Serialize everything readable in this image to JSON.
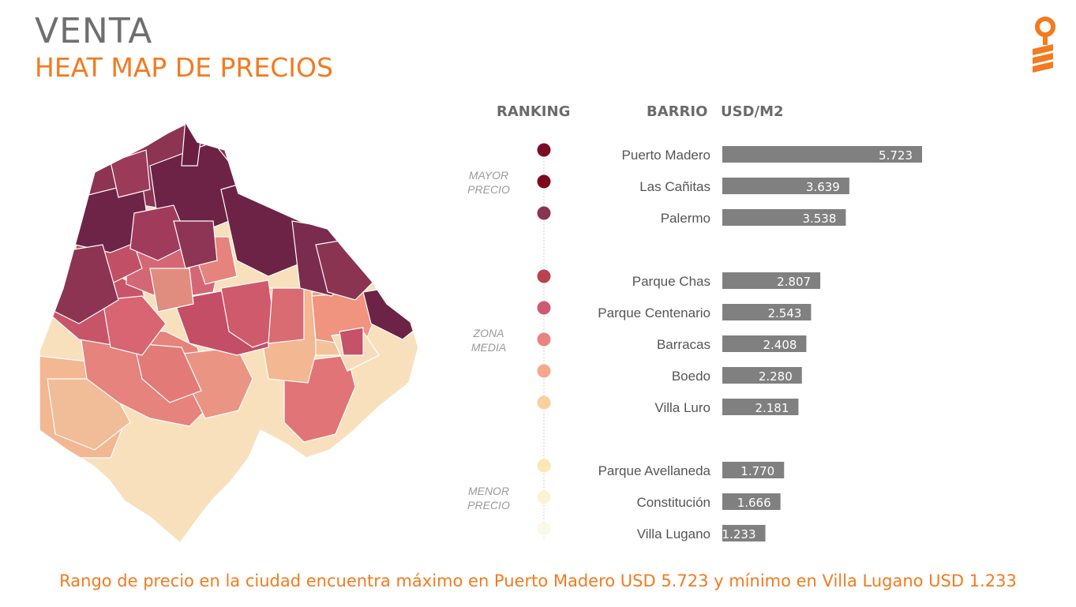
{
  "header": {
    "title": "VENTA",
    "subtitle": "HEAT MAP DE PRECIOS"
  },
  "logo": {
    "icon": "key-icon",
    "color": "#f47a1f"
  },
  "colors": {
    "accent": "#f47a1f",
    "bar": "#808080",
    "title_gray": "#6f6f6f"
  },
  "chart_data": {
    "type": "bar",
    "orientation": "horizontal",
    "columns": {
      "ranking": "RANKING",
      "barrio": "BARRIO",
      "value": "USD/M2"
    },
    "groups": [
      {
        "label": "MAYOR PRECIO",
        "start": 0,
        "end": 2
      },
      {
        "label": "ZONA MEDIA",
        "start": 3,
        "end": 7
      },
      {
        "label": "MENOR PRECIO",
        "start": 8,
        "end": 10
      }
    ],
    "categories": [
      "Puerto Madero",
      "Las Cañitas",
      "Palermo",
      "Parque Chas",
      "Parque Centenario",
      "Barracas",
      "Boedo",
      "Villa Luro",
      "Parque Avellaneda",
      "Constitución",
      "Villa Lugano"
    ],
    "values": [
      5723,
      3639,
      3538,
      2807,
      2543,
      2408,
      2280,
      2181,
      1770,
      1666,
      1233
    ],
    "value_labels": [
      "5.723",
      "3.639",
      "3.538",
      "2.807",
      "2.543",
      "2.408",
      "2.280",
      "2.181",
      "1.770",
      "1.666",
      "1.233"
    ],
    "dot_colors": [
      "#7a0d26",
      "#7d0a1c",
      "#8a3452",
      "#b9424f",
      "#cc5a70",
      "#e9837f",
      "#f5a98a",
      "#fbcf9e",
      "#fde7b4",
      "#fef2d3",
      "#fff7e6"
    ]
  },
  "map": {
    "legend_colors": [
      "#6d2345",
      "#8c3452",
      "#c8546a",
      "#e5837c",
      "#f3b792",
      "#f9e0bd"
    ]
  },
  "footer": {
    "text": "Rango de precio en la ciudad encuentra máximo en Puerto Madero USD 5.723 y mínimo en Villa Lugano USD 1.233"
  }
}
